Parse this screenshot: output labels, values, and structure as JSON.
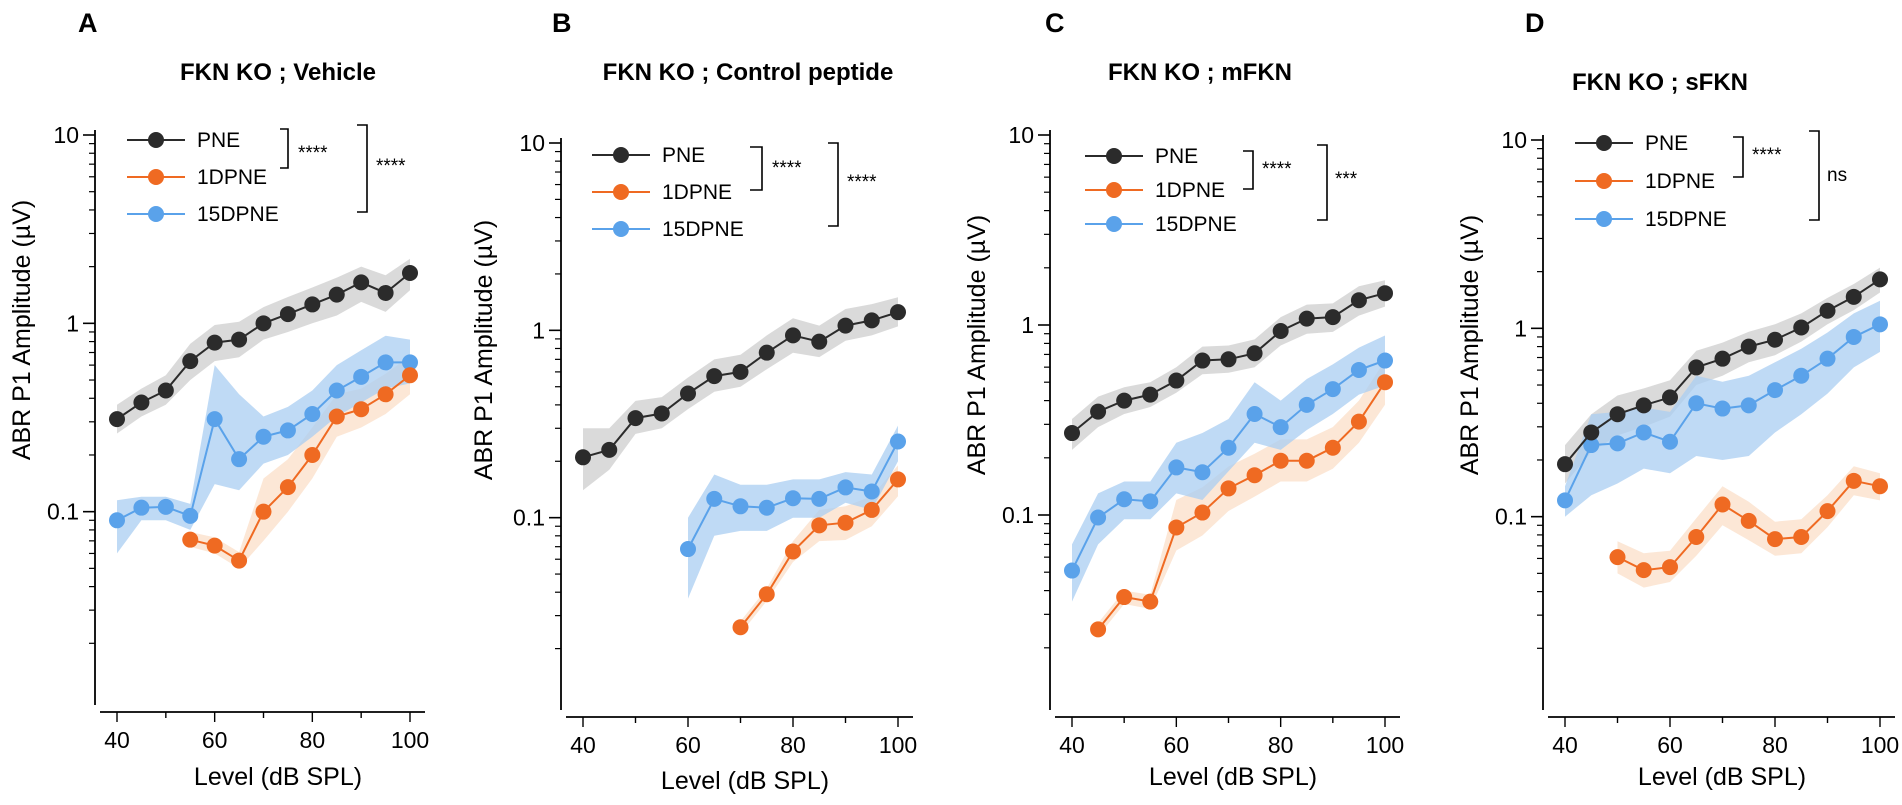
{
  "colors": {
    "PNE": "#2b2b2b",
    "1DPNE": "#ef6a22",
    "15DPNE": "#5aa2ea",
    "PNE_band": "#d6d6d6",
    "1DPNE_band": "#fbdfc8",
    "15DPNE_band": "#a9cdf2",
    "axis": "#000000"
  },
  "chart_data": [
    {
      "panel": "A",
      "type": "line",
      "title": "FKN KO ; Vehicle",
      "xlabel": "Level (dB SPL)",
      "ylabel": "ABR P1 Amplitude (µV)",
      "yscale": "log",
      "xlim": [
        37,
        104
      ],
      "ylim": [
        0.01,
        10
      ],
      "xticks": [
        40,
        60,
        80,
        100
      ],
      "xtick_labels": [
        "40",
        "60",
        "80",
        "100"
      ],
      "yticks": [
        0.1,
        1,
        10
      ],
      "ytick_labels": [
        "0.1",
        "1",
        "10"
      ],
      "legend": [
        "PNE",
        "1DPNE",
        "15DPNE"
      ],
      "significance": [
        {
          "between": "PNE vs 1DPNE",
          "label": "****"
        },
        {
          "between": "PNE vs 15DPNE",
          "label": "****"
        }
      ],
      "series": [
        {
          "name": "PNE",
          "x": [
            40,
            45,
            50,
            55,
            60,
            65,
            70,
            75,
            80,
            85,
            90,
            95,
            100
          ],
          "values": [
            0.31,
            0.38,
            0.44,
            0.63,
            0.79,
            0.82,
            1.0,
            1.12,
            1.26,
            1.42,
            1.65,
            1.45,
            1.85
          ],
          "lower": [
            0.26,
            0.32,
            0.37,
            0.5,
            0.63,
            0.66,
            0.82,
            0.9,
            1.0,
            1.1,
            1.3,
            1.15,
            1.5
          ],
          "upper": [
            0.37,
            0.45,
            0.53,
            0.78,
            0.98,
            1.02,
            1.22,
            1.38,
            1.55,
            1.75,
            2.0,
            1.8,
            2.2
          ]
        },
        {
          "name": "1DPNE",
          "x": [
            55,
            60,
            65,
            70,
            75,
            80,
            85,
            90,
            95,
            100
          ],
          "values": [
            0.071,
            0.066,
            0.055,
            0.1,
            0.135,
            0.2,
            0.32,
            0.35,
            0.42,
            0.53
          ],
          "lower": [
            0.065,
            0.06,
            0.05,
            0.07,
            0.1,
            0.15,
            0.25,
            0.28,
            0.33,
            0.42
          ],
          "upper": [
            0.078,
            0.073,
            0.061,
            0.15,
            0.19,
            0.28,
            0.42,
            0.45,
            0.54,
            0.67
          ]
        },
        {
          "name": "15DPNE",
          "x": [
            40,
            45,
            50,
            55,
            60,
            65,
            70,
            75,
            80,
            85,
            90,
            95,
            100
          ],
          "values": [
            0.09,
            0.105,
            0.106,
            0.095,
            0.31,
            0.19,
            0.25,
            0.27,
            0.33,
            0.44,
            0.52,
            0.62,
            0.62
          ],
          "lower": [
            0.06,
            0.09,
            0.09,
            0.08,
            0.14,
            0.13,
            0.18,
            0.2,
            0.25,
            0.32,
            0.38,
            0.45,
            0.48
          ],
          "upper": [
            0.115,
            0.12,
            0.12,
            0.11,
            0.6,
            0.42,
            0.32,
            0.36,
            0.44,
            0.6,
            0.72,
            0.86,
            0.82
          ]
        }
      ]
    },
    {
      "panel": "B",
      "type": "line",
      "title": "FKN KO ; Control peptide",
      "xlabel": "Level (dB SPL)",
      "ylabel": "ABR P1 Amplitude (µV)",
      "yscale": "log",
      "xlim": [
        37,
        104
      ],
      "ylim": [
        0.01,
        10
      ],
      "xticks": [
        40,
        60,
        80,
        100
      ],
      "xtick_labels": [
        "40",
        "60",
        "80",
        "100"
      ],
      "yticks": [
        0.1,
        1,
        10
      ],
      "ytick_labels": [
        "0.1",
        "1",
        "10"
      ],
      "legend": [
        "PNE",
        "1DPNE",
        "15DPNE"
      ],
      "significance": [
        {
          "between": "PNE vs 1DPNE",
          "label": "****"
        },
        {
          "between": "PNE vs 15DPNE",
          "label": "****"
        }
      ],
      "series": [
        {
          "name": "PNE",
          "x": [
            40,
            45,
            50,
            55,
            60,
            65,
            70,
            75,
            80,
            85,
            90,
            95,
            100
          ],
          "values": [
            0.21,
            0.23,
            0.34,
            0.36,
            0.46,
            0.57,
            0.6,
            0.76,
            0.94,
            0.87,
            1.06,
            1.13,
            1.25
          ],
          "lower": [
            0.14,
            0.18,
            0.28,
            0.3,
            0.38,
            0.47,
            0.5,
            0.62,
            0.76,
            0.72,
            0.88,
            0.94,
            1.05
          ],
          "upper": [
            0.3,
            0.3,
            0.42,
            0.44,
            0.56,
            0.7,
            0.74,
            0.94,
            1.16,
            1.06,
            1.3,
            1.38,
            1.5
          ]
        },
        {
          "name": "1DPNE",
          "x": [
            70,
            75,
            80,
            85,
            90,
            95,
            100
          ],
          "values": [
            0.026,
            0.039,
            0.066,
            0.091,
            0.094,
            0.11,
            0.16
          ],
          "lower": [
            0.024,
            0.036,
            0.058,
            0.075,
            0.076,
            0.09,
            0.13
          ],
          "upper": [
            0.028,
            0.042,
            0.075,
            0.11,
            0.115,
            0.13,
            0.19
          ]
        },
        {
          "name": "15DPNE",
          "x": [
            60,
            65,
            70,
            75,
            80,
            85,
            90,
            95,
            100
          ],
          "values": [
            0.068,
            0.126,
            0.115,
            0.113,
            0.127,
            0.126,
            0.145,
            0.138,
            0.255
          ],
          "lower": [
            0.037,
            0.08,
            0.085,
            0.085,
            0.1,
            0.1,
            0.12,
            0.11,
            0.2
          ],
          "upper": [
            0.1,
            0.17,
            0.15,
            0.15,
            0.16,
            0.16,
            0.175,
            0.17,
            0.31
          ]
        }
      ]
    },
    {
      "panel": "C",
      "type": "line",
      "title": "FKN KO ; mFKN",
      "xlabel": "Level (dB SPL)",
      "ylabel": "ABR P1 Amplitude (µV)",
      "yscale": "log",
      "xlim": [
        37,
        104
      ],
      "ylim": [
        0.01,
        10
      ],
      "xticks": [
        40,
        60,
        80,
        100
      ],
      "xtick_labels": [
        "40",
        "60",
        "80",
        "100"
      ],
      "yticks": [
        0.1,
        1,
        10
      ],
      "ytick_labels": [
        "0.1",
        "1",
        "10"
      ],
      "legend": [
        "PNE",
        "1DPNE",
        "15DPNE"
      ],
      "significance": [
        {
          "between": "PNE vs 1DPNE",
          "label": "****"
        },
        {
          "between": "PNE vs 15DPNE",
          "label": "***"
        }
      ],
      "series": [
        {
          "name": "PNE",
          "x": [
            40,
            45,
            50,
            55,
            60,
            65,
            70,
            75,
            80,
            85,
            90,
            95,
            100
          ],
          "values": [
            0.27,
            0.35,
            0.4,
            0.43,
            0.51,
            0.65,
            0.66,
            0.71,
            0.93,
            1.08,
            1.1,
            1.35,
            1.47
          ],
          "lower": [
            0.22,
            0.29,
            0.34,
            0.37,
            0.44,
            0.55,
            0.56,
            0.6,
            0.78,
            0.9,
            0.92,
            1.12,
            1.25
          ],
          "upper": [
            0.32,
            0.42,
            0.47,
            0.5,
            0.6,
            0.77,
            0.78,
            0.84,
            1.1,
            1.28,
            1.3,
            1.6,
            1.72
          ]
        },
        {
          "name": "1DPNE",
          "x": [
            45,
            50,
            55,
            60,
            65,
            70,
            75,
            80,
            85,
            90,
            95,
            100
          ],
          "values": [
            0.025,
            0.037,
            0.035,
            0.086,
            0.103,
            0.138,
            0.162,
            0.193,
            0.193,
            0.226,
            0.31,
            0.5
          ],
          "lower": [
            0.023,
            0.034,
            0.032,
            0.065,
            0.078,
            0.105,
            0.125,
            0.15,
            0.15,
            0.175,
            0.24,
            0.38
          ],
          "upper": [
            0.027,
            0.04,
            0.038,
            0.12,
            0.14,
            0.18,
            0.21,
            0.25,
            0.25,
            0.29,
            0.4,
            0.65
          ]
        },
        {
          "name": "15DPNE",
          "x": [
            40,
            45,
            50,
            55,
            60,
            65,
            70,
            75,
            80,
            85,
            90,
            95,
            100
          ],
          "values": [
            0.051,
            0.097,
            0.121,
            0.118,
            0.178,
            0.168,
            0.226,
            0.34,
            0.29,
            0.38,
            0.46,
            0.58,
            0.65
          ],
          "lower": [
            0.035,
            0.07,
            0.095,
            0.095,
            0.13,
            0.12,
            0.17,
            0.24,
            0.22,
            0.28,
            0.34,
            0.43,
            0.48
          ],
          "upper": [
            0.07,
            0.13,
            0.15,
            0.15,
            0.24,
            0.27,
            0.32,
            0.5,
            0.4,
            0.52,
            0.62,
            0.76,
            0.88
          ]
        }
      ]
    },
    {
      "panel": "D",
      "type": "line",
      "title": "FKN KO ; sFKN",
      "xlabel": "Level (dB SPL)",
      "ylabel": "ABR P1 Amplitude (µV)",
      "yscale": "log",
      "xlim": [
        37,
        104
      ],
      "ylim": [
        0.01,
        10
      ],
      "xticks": [
        40,
        60,
        80,
        100
      ],
      "xtick_labels": [
        "40",
        "60",
        "80",
        "100"
      ],
      "yticks": [
        0.1,
        1,
        10
      ],
      "ytick_labels": [
        "0.1",
        "1",
        "10"
      ],
      "legend": [
        "PNE",
        "1DPNE",
        "15DPNE"
      ],
      "significance": [
        {
          "between": "PNE vs 1DPNE",
          "label": "****"
        },
        {
          "between": "PNE vs 15DPNE",
          "label": "ns"
        }
      ],
      "series": [
        {
          "name": "PNE",
          "x": [
            40,
            45,
            50,
            55,
            60,
            65,
            70,
            75,
            80,
            85,
            90,
            95,
            100
          ],
          "values": [
            0.19,
            0.28,
            0.35,
            0.39,
            0.43,
            0.62,
            0.69,
            0.8,
            0.87,
            1.01,
            1.24,
            1.47,
            1.82
          ],
          "lower": [
            0.15,
            0.22,
            0.27,
            0.3,
            0.34,
            0.5,
            0.56,
            0.66,
            0.72,
            0.85,
            1.05,
            1.25,
            1.55
          ],
          "upper": [
            0.24,
            0.35,
            0.44,
            0.48,
            0.53,
            0.76,
            0.84,
            0.96,
            1.05,
            1.2,
            1.45,
            1.72,
            2.1
          ]
        },
        {
          "name": "1DPNE",
          "x": [
            50,
            55,
            60,
            65,
            70,
            75,
            80,
            85,
            90,
            95,
            100
          ],
          "values": [
            0.061,
            0.052,
            0.054,
            0.078,
            0.116,
            0.095,
            0.076,
            0.078,
            0.107,
            0.155,
            0.145
          ],
          "lower": [
            0.05,
            0.042,
            0.045,
            0.062,
            0.09,
            0.075,
            0.062,
            0.064,
            0.088,
            0.13,
            0.122
          ],
          "upper": [
            0.074,
            0.064,
            0.066,
            0.098,
            0.145,
            0.12,
            0.094,
            0.097,
            0.13,
            0.185,
            0.17
          ]
        },
        {
          "name": "15DPNE",
          "x": [
            40,
            45,
            50,
            55,
            60,
            65,
            70,
            75,
            80,
            85,
            90,
            95,
            100
          ],
          "values": [
            0.122,
            0.24,
            0.245,
            0.28,
            0.25,
            0.4,
            0.375,
            0.39,
            0.47,
            0.56,
            0.69,
            0.9,
            1.05
          ],
          "lower": [
            0.1,
            0.13,
            0.15,
            0.18,
            0.17,
            0.21,
            0.2,
            0.21,
            0.28,
            0.35,
            0.45,
            0.62,
            0.75
          ],
          "upper": [
            0.145,
            0.35,
            0.36,
            0.38,
            0.36,
            0.56,
            0.52,
            0.56,
            0.66,
            0.78,
            0.95,
            1.2,
            1.4
          ]
        }
      ]
    }
  ]
}
